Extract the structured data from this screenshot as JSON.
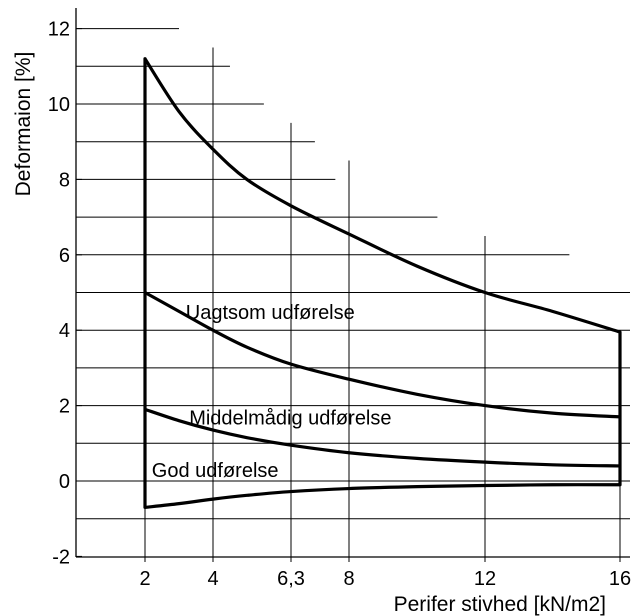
{
  "chart_data": {
    "type": "line",
    "xlabel": "Perifer stivhed [kN/m2]",
    "ylabel": "Deformaion  [%]",
    "xlim": [
      1,
      17
    ],
    "ylim": [
      -2,
      12.5
    ],
    "x_ticks": [
      {
        "value": 2,
        "label": "2"
      },
      {
        "value": 4,
        "label": "4"
      },
      {
        "value": 6.3,
        "label": "6,3"
      },
      {
        "value": 8,
        "label": "8"
      },
      {
        "value": 12,
        "label": "12"
      },
      {
        "value": 16,
        "label": "16"
      }
    ],
    "y_ticks": [
      {
        "value": -2,
        "label": "-2"
      },
      {
        "value": 0,
        "label": "0"
      },
      {
        "value": 2,
        "label": "2"
      },
      {
        "value": 4,
        "label": "4"
      },
      {
        "value": 6,
        "label": "6"
      },
      {
        "value": 8,
        "label": "8"
      },
      {
        "value": 10,
        "label": "10"
      },
      {
        "value": 12,
        "label": "12"
      }
    ],
    "staircase_gridlines": [
      {
        "y": 12,
        "x_end": 3
      },
      {
        "y": 11,
        "x_end": 4.5
      },
      {
        "y": 10,
        "x_end": 5.5
      },
      {
        "y": 9,
        "x_end": 7
      },
      {
        "y": 8,
        "x_end": 7.6
      },
      {
        "y": 7,
        "x_end": 10.6
      },
      {
        "y": 6,
        "x_end": 14.5
      },
      {
        "y": 5,
        "x_end": 17
      },
      {
        "y": 4,
        "x_end": 17
      },
      {
        "y": 3,
        "x_end": 17
      },
      {
        "y": 2,
        "x_end": 17
      },
      {
        "y": 1,
        "x_end": 17
      },
      {
        "y": 0,
        "x_end": 17
      },
      {
        "y": -1,
        "x_end": 17
      }
    ],
    "vertical_gridlines": [
      {
        "x": 2,
        "y_top": 11.2
      },
      {
        "x": 4,
        "y_top": 11.5
      },
      {
        "x": 6.3,
        "y_top": 9.5
      },
      {
        "x": 8,
        "y_top": 8.5
      },
      {
        "x": 12,
        "y_top": 6.5
      },
      {
        "x": 16,
        "y_top": 4
      }
    ],
    "series": [
      {
        "x": [
          2,
          3,
          4,
          5,
          6.3,
          8,
          10,
          12,
          14,
          16
        ],
        "y": [
          11.2,
          9.8,
          8.8,
          8.0,
          7.3,
          6.55,
          5.7,
          5.0,
          4.5,
          3.95
        ]
      },
      {
        "x": [
          2,
          3,
          4,
          5,
          6.3,
          8,
          10,
          12,
          14,
          16
        ],
        "y": [
          5.0,
          4.5,
          4.0,
          3.55,
          3.1,
          2.7,
          2.3,
          2.0,
          1.8,
          1.7
        ]
      },
      {
        "x": [
          2,
          3,
          4,
          5,
          6.3,
          8,
          10,
          12,
          14,
          16
        ],
        "y": [
          1.9,
          1.6,
          1.35,
          1.15,
          0.95,
          0.75,
          0.6,
          0.5,
          0.43,
          0.4
        ]
      },
      {
        "x": [
          2,
          3,
          4,
          5,
          6.3,
          8,
          10,
          12,
          14,
          16
        ],
        "y": [
          -0.7,
          -0.6,
          -0.48,
          -0.38,
          -0.28,
          -0.2,
          -0.15,
          -0.12,
          -0.1,
          -0.1
        ]
      }
    ],
    "boundaries": [
      {
        "x": 2,
        "y_from": -0.7,
        "y_to": 11.2
      },
      {
        "x": 16,
        "y_from": -0.1,
        "y_to": 3.95
      }
    ],
    "annotations": [
      {
        "text": "Uagtsom udførelse",
        "x": 3.2,
        "y": 4.3
      },
      {
        "text": "Middelmådig udførelse",
        "x": 3.3,
        "y": 1.5
      },
      {
        "text": "God udførelse",
        "x": 2.2,
        "y": 0.1
      }
    ]
  }
}
